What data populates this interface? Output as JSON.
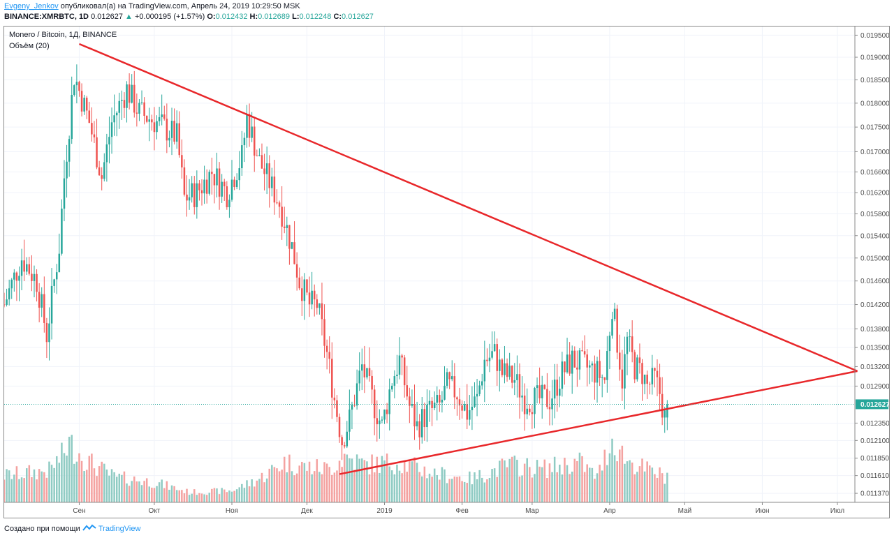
{
  "header": {
    "author": "Evgeny_Jenkov",
    "published_text": "опубликовал(а) на TradingView.com, Апрель 24, 2019 10:29:50 MSK",
    "symbol": "BINANCE:XMRBTC, 1D",
    "last_price": "0.012627",
    "up_arrow": "▲",
    "change": "+0.000195 (+1.57%)",
    "o_label": "O:",
    "o_value": "0.012432",
    "h_label": "H:",
    "h_value": "0.012689",
    "l_label": "L:",
    "l_value": "0.012248",
    "c_label": "C:",
    "c_value": "0.012627"
  },
  "footer": {
    "created_with": "Создано при помощи",
    "brand": "TradingView"
  },
  "colors": {
    "up": "#26a69a",
    "down": "#ef5350",
    "volume_up": "#8fcbc3",
    "volume_down": "#f4a2a0",
    "trendline": "#e8272a",
    "price_line": "#26a69a"
  },
  "chart_data": {
    "type": "candlestick",
    "title": "Monero / Bitcoin, 1Д, BINANCE",
    "indicator_label": "Объём (20)",
    "x_tick_labels": [
      "Сен",
      "Окт",
      "Ноя",
      "Дек",
      "2019",
      "Фев",
      "Мар",
      "Апр",
      "Май",
      "Июн",
      "Июл"
    ],
    "x_tick_dates": [
      "2018-09-01",
      "2018-10-01",
      "2018-11-01",
      "2018-12-01",
      "2019-01-01",
      "2019-02-01",
      "2019-03-01",
      "2019-04-01",
      "2019-05-01",
      "2019-06-01",
      "2019-07-01"
    ],
    "x_range": [
      "2018-08-02",
      "2019-07-08"
    ],
    "y_scale": "log",
    "y_range": [
      0.01125,
      0.0197
    ],
    "y_tick_labels": [
      "0.019500",
      "0.019000",
      "0.018500",
      "0.018000",
      "0.017500",
      "0.017000",
      "0.016600",
      "0.016200",
      "0.015800",
      "0.015400",
      "0.015000",
      "0.014600",
      "0.014200",
      "0.013800",
      "0.013500",
      "0.013200",
      "0.012900",
      "0.012350",
      "0.012100",
      "0.011850",
      "0.011610",
      "0.011370"
    ],
    "current_price_label": "0.012627",
    "current_price": 0.012627,
    "trendlines": [
      {
        "name": "descending resistance",
        "points": [
          [
            "2018-09-01",
            0.0193
          ],
          [
            "2019-07-09",
            0.01313
          ]
        ]
      },
      {
        "name": "ascending support",
        "points": [
          [
            "2018-12-14",
            0.01163
          ],
          [
            "2019-07-09",
            0.01313
          ]
        ]
      }
    ],
    "price_anchors": [
      [
        "2018-08-02",
        0.0142
      ],
      [
        "2018-08-09",
        0.015
      ],
      [
        "2018-08-15",
        0.0146
      ],
      [
        "2018-08-19",
        0.0137
      ],
      [
        "2018-08-24",
        0.0152
      ],
      [
        "2018-08-26",
        0.0165
      ],
      [
        "2018-08-30",
        0.0186
      ],
      [
        "2018-09-05",
        0.0176
      ],
      [
        "2018-09-10",
        0.0165
      ],
      [
        "2018-09-14",
        0.0176
      ],
      [
        "2018-09-20",
        0.0183
      ],
      [
        "2018-09-25",
        0.0178
      ],
      [
        "2018-10-02",
        0.0176
      ],
      [
        "2018-10-10",
        0.0173
      ],
      [
        "2018-10-13",
        0.0161
      ],
      [
        "2018-10-18",
        0.0162
      ],
      [
        "2018-10-24",
        0.0166
      ],
      [
        "2018-10-30",
        0.0162
      ],
      [
        "2018-11-05",
        0.0169
      ],
      [
        "2018-11-07",
        0.0177
      ],
      [
        "2018-11-12",
        0.0168
      ],
      [
        "2018-11-16",
        0.0164
      ],
      [
        "2018-11-20",
        0.016
      ],
      [
        "2018-11-25",
        0.0152
      ],
      [
        "2018-11-28",
        0.0146
      ],
      [
        "2018-12-02",
        0.0142
      ],
      [
        "2018-12-05",
        0.0142
      ],
      [
        "2018-12-09",
        0.0134
      ],
      [
        "2018-12-12",
        0.0127
      ],
      [
        "2018-12-15",
        0.0121
      ],
      [
        "2018-12-18",
        0.0124
      ],
      [
        "2018-12-23",
        0.0132
      ],
      [
        "2018-12-28",
        0.0126
      ],
      [
        "2018-12-31",
        0.0123
      ],
      [
        "2019-01-04",
        0.013
      ],
      [
        "2019-01-07",
        0.0133
      ],
      [
        "2019-01-11",
        0.0126
      ],
      [
        "2019-01-14",
        0.0123
      ],
      [
        "2019-01-18",
        0.0125
      ],
      [
        "2019-01-23",
        0.0126
      ],
      [
        "2019-01-26",
        0.0129
      ],
      [
        "2019-01-30",
        0.0128
      ],
      [
        "2019-02-03",
        0.0125
      ],
      [
        "2019-02-07",
        0.0127
      ],
      [
        "2019-02-10",
        0.0133
      ],
      [
        "2019-02-14",
        0.0134
      ],
      [
        "2019-02-17",
        0.0131
      ],
      [
        "2019-02-22",
        0.013
      ],
      [
        "2019-02-26",
        0.0127
      ],
      [
        "2019-03-03",
        0.0127
      ],
      [
        "2019-03-08",
        0.0127
      ],
      [
        "2019-03-13",
        0.0131
      ],
      [
        "2019-03-17",
        0.0133
      ],
      [
        "2019-03-22",
        0.0132
      ],
      [
        "2019-03-27",
        0.0131
      ],
      [
        "2019-03-30",
        0.013
      ],
      [
        "2019-04-02",
        0.0142
      ],
      [
        "2019-04-04",
        0.0136
      ],
      [
        "2019-04-06",
        0.013
      ],
      [
        "2019-04-08",
        0.0136
      ],
      [
        "2019-04-11",
        0.0132
      ],
      [
        "2019-04-14",
        0.0131
      ],
      [
        "2019-04-16",
        0.0129
      ],
      [
        "2019-04-19",
        0.013
      ],
      [
        "2019-04-21",
        0.0128
      ],
      [
        "2019-04-23",
        0.01243
      ],
      [
        "2019-04-24",
        0.012627
      ]
    ],
    "volume_anchors": [
      [
        "2018-08-02",
        0.32
      ],
      [
        "2018-08-20",
        0.38
      ],
      [
        "2018-08-25",
        0.55
      ],
      [
        "2018-08-28",
        0.7
      ],
      [
        "2018-09-05",
        0.48
      ],
      [
        "2018-09-15",
        0.3
      ],
      [
        "2018-10-01",
        0.24
      ],
      [
        "2018-10-15",
        0.12
      ],
      [
        "2018-11-01",
        0.14
      ],
      [
        "2018-11-12",
        0.28
      ],
      [
        "2018-11-22",
        0.48
      ],
      [
        "2018-12-01",
        0.42
      ],
      [
        "2018-12-10",
        0.4
      ],
      [
        "2018-12-16",
        0.55
      ],
      [
        "2018-12-24",
        0.45
      ],
      [
        "2019-01-07",
        0.48
      ],
      [
        "2019-01-20",
        0.35
      ],
      [
        "2019-02-05",
        0.28
      ],
      [
        "2019-02-20",
        0.45
      ],
      [
        "2019-03-05",
        0.4
      ],
      [
        "2019-03-20",
        0.48
      ],
      [
        "2019-03-27",
        0.3
      ],
      [
        "2019-04-02",
        0.75
      ],
      [
        "2019-04-08",
        0.5
      ],
      [
        "2019-04-15",
        0.4
      ],
      [
        "2019-04-24",
        0.3
      ]
    ]
  }
}
